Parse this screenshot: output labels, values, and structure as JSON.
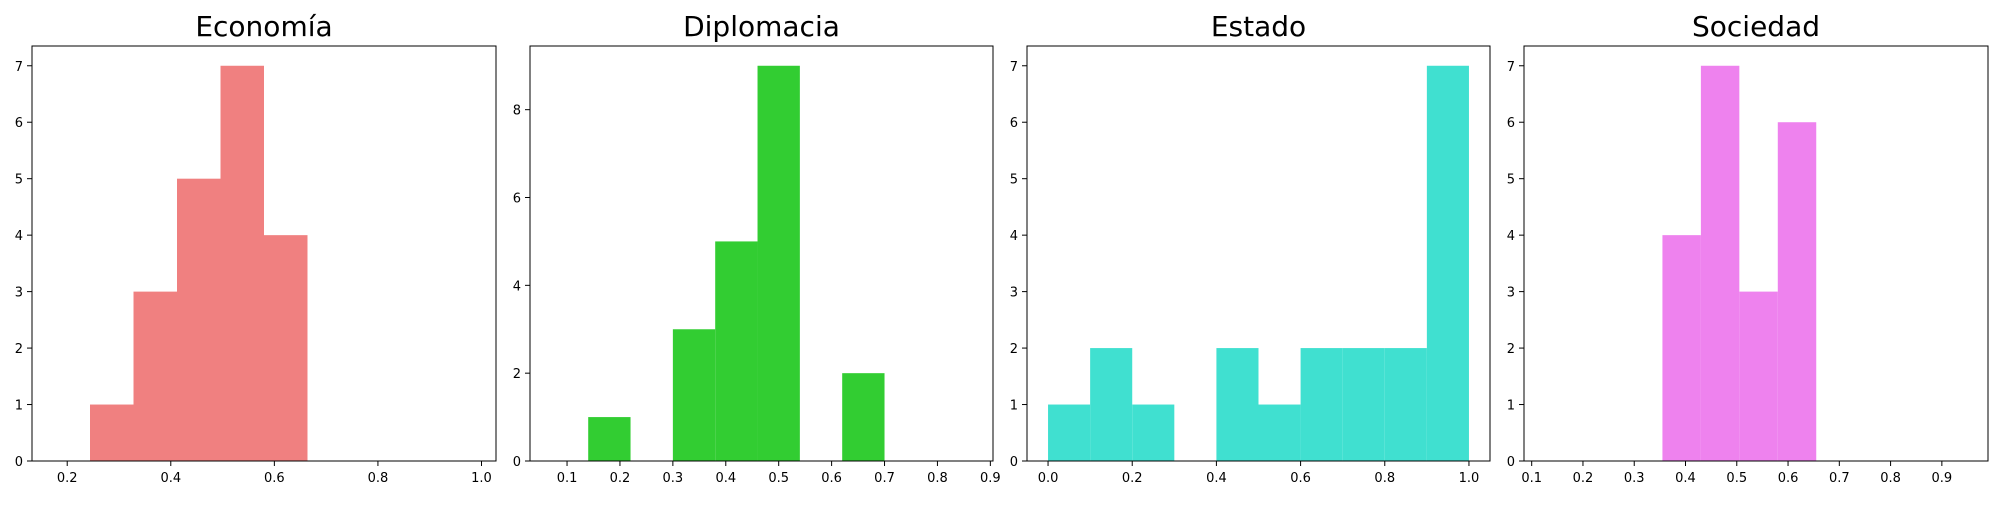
{
  "chart_data": [
    {
      "type": "histogram",
      "title": "Economía",
      "color": "#F08080",
      "xlim": [
        0.132,
        1.028
      ],
      "ylim": [
        0,
        7.35
      ],
      "xticks": [
        0.2,
        0.4,
        0.6,
        0.8,
        1.0
      ],
      "xtick_labels": [
        "0.2",
        "0.4",
        "0.6",
        "0.8",
        "1.0"
      ],
      "yticks": [
        0,
        1,
        2,
        3,
        4,
        5,
        6,
        7
      ],
      "ytick_labels": [
        "0",
        "1",
        "2",
        "3",
        "4",
        "5",
        "6",
        "7"
      ],
      "bins": [
        {
          "x0": 0.244,
          "x1": 0.328,
          "count": 1
        },
        {
          "x0": 0.328,
          "x1": 0.412,
          "count": 3
        },
        {
          "x0": 0.412,
          "x1": 0.496,
          "count": 5
        },
        {
          "x0": 0.496,
          "x1": 0.58,
          "count": 7
        },
        {
          "x0": 0.58,
          "x1": 0.664,
          "count": 4
        }
      ]
    },
    {
      "type": "histogram",
      "title": "Diplomacia",
      "color": "#32CD32",
      "xlim": [
        0.03,
        0.905
      ],
      "ylim": [
        0,
        9.45
      ],
      "xticks": [
        0.1,
        0.2,
        0.3,
        0.4,
        0.5,
        0.6,
        0.7,
        0.8,
        0.9
      ],
      "xtick_labels": [
        "0.1",
        "0.2",
        "0.3",
        "0.4",
        "0.5",
        "0.6",
        "0.7",
        "0.8",
        "0.9"
      ],
      "yticks": [
        0,
        2,
        4,
        6,
        8
      ],
      "ytick_labels": [
        "0",
        "2",
        "4",
        "6",
        "8"
      ],
      "bins": [
        {
          "x0": 0.14,
          "x1": 0.22,
          "count": 1
        },
        {
          "x0": 0.3,
          "x1": 0.38,
          "count": 3
        },
        {
          "x0": 0.38,
          "x1": 0.46,
          "count": 5
        },
        {
          "x0": 0.46,
          "x1": 0.54,
          "count": 9
        },
        {
          "x0": 0.62,
          "x1": 0.7,
          "count": 2
        }
      ]
    },
    {
      "type": "histogram",
      "title": "Estado",
      "color": "#40E0D0",
      "xlim": [
        -0.05,
        1.05
      ],
      "ylim": [
        0,
        7.35
      ],
      "xticks": [
        0.0,
        0.2,
        0.4,
        0.6,
        0.8,
        1.0
      ],
      "xtick_labels": [
        "0.0",
        "0.2",
        "0.4",
        "0.6",
        "0.8",
        "1.0"
      ],
      "yticks": [
        0,
        1,
        2,
        3,
        4,
        5,
        6,
        7
      ],
      "ytick_labels": [
        "0",
        "1",
        "2",
        "3",
        "4",
        "5",
        "6",
        "7"
      ],
      "bins": [
        {
          "x0": 0.0,
          "x1": 0.1,
          "count": 1
        },
        {
          "x0": 0.1,
          "x1": 0.2,
          "count": 2
        },
        {
          "x0": 0.2,
          "x1": 0.3,
          "count": 1
        },
        {
          "x0": 0.4,
          "x1": 0.5,
          "count": 2
        },
        {
          "x0": 0.5,
          "x1": 0.6,
          "count": 1
        },
        {
          "x0": 0.6,
          "x1": 0.7,
          "count": 2
        },
        {
          "x0": 0.7,
          "x1": 0.8,
          "count": 2
        },
        {
          "x0": 0.8,
          "x1": 0.9,
          "count": 2
        },
        {
          "x0": 0.9,
          "x1": 1.0,
          "count": 7
        }
      ]
    },
    {
      "type": "histogram",
      "title": "Sociedad",
      "color": "#EE82EE",
      "xlim": [
        0.085,
        0.99
      ],
      "ylim": [
        0,
        7.35
      ],
      "xticks": [
        0.1,
        0.2,
        0.3,
        0.4,
        0.5,
        0.6,
        0.7,
        0.8,
        0.9
      ],
      "xtick_labels": [
        "0.1",
        "0.2",
        "0.3",
        "0.4",
        "0.5",
        "0.6",
        "0.7",
        "0.8",
        "0.9"
      ],
      "yticks": [
        0,
        1,
        2,
        3,
        4,
        5,
        6,
        7
      ],
      "ytick_labels": [
        "0",
        "1",
        "2",
        "3",
        "4",
        "5",
        "6",
        "7"
      ],
      "bins": [
        {
          "x0": 0.355,
          "x1": 0.43,
          "count": 4
        },
        {
          "x0": 0.43,
          "x1": 0.505,
          "count": 7
        },
        {
          "x0": 0.505,
          "x1": 0.58,
          "count": 3
        },
        {
          "x0": 0.58,
          "x1": 0.655,
          "count": 6
        }
      ]
    }
  ]
}
